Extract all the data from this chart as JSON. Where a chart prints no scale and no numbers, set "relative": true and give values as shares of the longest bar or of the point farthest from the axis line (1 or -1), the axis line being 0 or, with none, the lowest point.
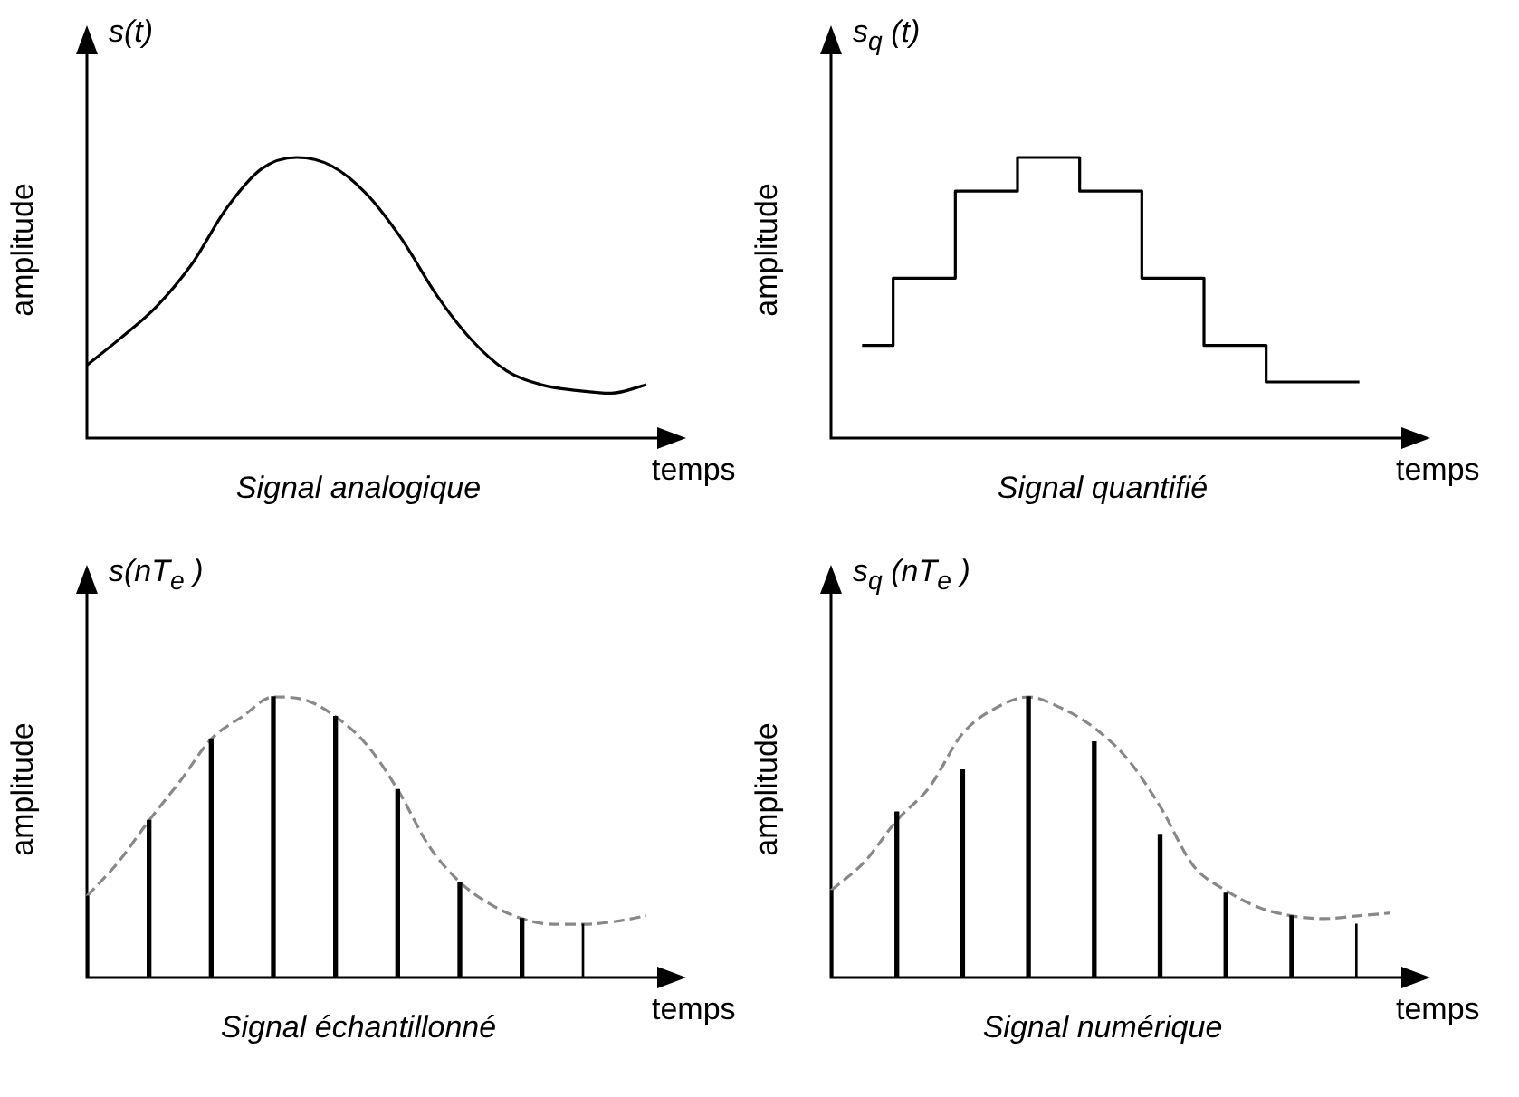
{
  "chart_data": [
    {
      "type": "line",
      "relative": true,
      "title": "s(t)",
      "xlabel": "temps",
      "ylabel": "amplitude",
      "annotations": [
        "Signal analogique"
      ],
      "legend": false,
      "marker": "none",
      "color": "#000000",
      "categories": [
        null,
        null,
        null,
        null,
        null,
        null,
        null,
        null,
        null,
        null,
        null,
        null,
        null,
        null,
        null,
        null,
        null
      ],
      "values": [
        0.26,
        0.36,
        0.47,
        0.62,
        0.82,
        0.96,
        1.0,
        0.97,
        0.87,
        0.71,
        0.51,
        0.35,
        0.24,
        0.19,
        0.17,
        0.16,
        0.19
      ]
    },
    {
      "type": "step",
      "relative": true,
      "title": "s$_{q}$ (t)",
      "xlabel": "temps",
      "ylabel": "amplitude",
      "annotations": [
        "Signal quantifié"
      ],
      "legend": false,
      "marker": "none",
      "color": "#000000",
      "categories": [
        null,
        null,
        null,
        null,
        null,
        null,
        null,
        null,
        null
      ],
      "values": [
        0.33,
        0.57,
        0.88,
        1.0,
        0.88,
        0.57,
        0.33,
        0.2,
        0.2
      ]
    },
    {
      "type": "line",
      "relative": true,
      "title": "s(nT$_{e}$ )",
      "xlabel": "temps",
      "ylabel": "amplitude",
      "annotations": [
        "Signal échantillonné"
      ],
      "legend": false,
      "marker": "none",
      "line_style": "dashed",
      "color": "#888888",
      "categories": [
        null,
        null,
        null,
        null,
        null,
        null,
        null,
        null,
        null,
        null,
        null,
        null,
        null,
        null,
        null,
        null,
        null,
        null,
        null
      ],
      "values": [
        0.29,
        0.41,
        0.56,
        0.7,
        0.85,
        0.93,
        1.0,
        0.99,
        0.93,
        0.83,
        0.67,
        0.47,
        0.34,
        0.26,
        0.21,
        0.19,
        0.19,
        0.2,
        0.22
      ]
    },
    {
      "type": "bar",
      "relative": true,
      "legend": false,
      "color": "#000000",
      "categories": [
        null,
        null,
        null,
        null,
        null,
        null,
        null,
        null,
        null
      ],
      "values": [
        0.29,
        0.56,
        0.85,
        1.0,
        0.93,
        0.67,
        0.34,
        0.21,
        0.19
      ]
    },
    {
      "type": "line",
      "relative": true,
      "title": "s$_{q}$ (nT$_{e}$ )",
      "xlabel": "temps",
      "ylabel": "amplitude",
      "annotations": [
        "Signal numérique"
      ],
      "legend": false,
      "marker": "none",
      "line_style": "dashed",
      "color": "#888888",
      "categories": [
        null,
        null,
        null,
        null,
        null,
        null,
        null,
        null,
        null,
        null,
        null,
        null,
        null,
        null,
        null,
        null,
        null,
        null
      ],
      "values": [
        0.31,
        0.41,
        0.56,
        0.68,
        0.87,
        0.96,
        1.0,
        0.96,
        0.89,
        0.78,
        0.61,
        0.4,
        0.31,
        0.25,
        0.22,
        0.21,
        0.22,
        0.23
      ]
    },
    {
      "type": "bar",
      "relative": true,
      "legend": false,
      "color": "#000000",
      "categories": [
        null,
        null,
        null,
        null,
        null,
        null,
        null,
        null,
        null
      ],
      "values": [
        0.31,
        0.59,
        0.74,
        1.0,
        0.84,
        0.51,
        0.3,
        0.22,
        0.19
      ]
    }
  ]
}
